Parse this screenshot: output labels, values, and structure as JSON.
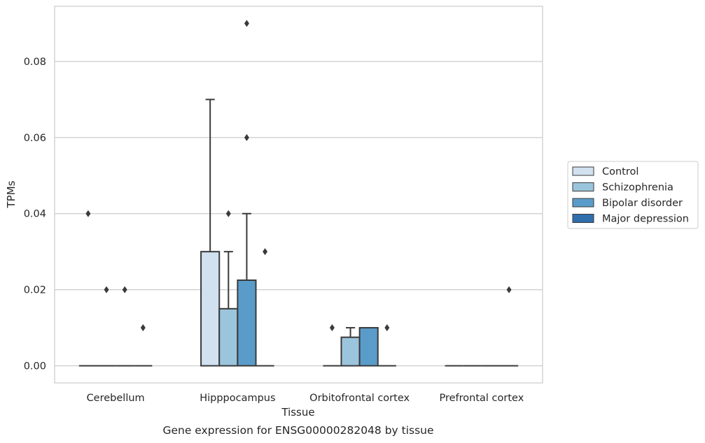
{
  "chart_data": {
    "type": "box",
    "title": "",
    "caption": "Gene expression for ENSG00000282048 by tissue",
    "xlabel": "Tissue",
    "ylabel": "TPMs",
    "ylim": [
      -0.0045,
      0.0945
    ],
    "yticks": [
      0.0,
      0.02,
      0.04,
      0.06,
      0.08
    ],
    "ytick_labels": [
      "0.00",
      "0.02",
      "0.04",
      "0.06",
      "0.08"
    ],
    "grid": "horizontal",
    "legend_position": "right",
    "categories": [
      "Cerebellum",
      "Hipppocampus",
      "Orbitofrontal cortex",
      "Prefrontal cortex"
    ],
    "series": [
      {
        "name": "Control",
        "color": "#d1e1f0",
        "boxes": [
          {
            "q1": 0.0,
            "median": 0.0,
            "q3": 0.0,
            "whisker_low": 0.0,
            "whisker_high": 0.0,
            "outliers": [
              0.04
            ]
          },
          {
            "q1": 0.0,
            "median": 0.0,
            "q3": 0.03,
            "whisker_low": 0.0,
            "whisker_high": 0.07,
            "outliers": []
          },
          {
            "q1": 0.0,
            "median": 0.0,
            "q3": 0.0,
            "whisker_low": 0.0,
            "whisker_high": 0.0,
            "outliers": [
              0.01
            ]
          },
          {
            "q1": 0.0,
            "median": 0.0,
            "q3": 0.0,
            "whisker_low": 0.0,
            "whisker_high": 0.0,
            "outliers": []
          }
        ]
      },
      {
        "name": "Schizophrenia",
        "color": "#9bc5dc",
        "boxes": [
          {
            "q1": 0.0,
            "median": 0.0,
            "q3": 0.0,
            "whisker_low": 0.0,
            "whisker_high": 0.0,
            "outliers": [
              0.02
            ]
          },
          {
            "q1": 0.0,
            "median": 0.0,
            "q3": 0.015,
            "whisker_low": 0.0,
            "whisker_high": 0.03,
            "outliers": [
              0.04
            ]
          },
          {
            "q1": 0.0,
            "median": 0.0,
            "q3": 0.0075,
            "whisker_low": 0.0,
            "whisker_high": 0.01,
            "outliers": []
          },
          {
            "q1": 0.0,
            "median": 0.0,
            "q3": 0.0,
            "whisker_low": 0.0,
            "whisker_high": 0.0,
            "outliers": []
          }
        ]
      },
      {
        "name": "Bipolar disorder",
        "color": "#5a9cc9",
        "boxes": [
          {
            "q1": 0.0,
            "median": 0.0,
            "q3": 0.0,
            "whisker_low": 0.0,
            "whisker_high": 0.0,
            "outliers": [
              0.02
            ]
          },
          {
            "q1": 0.0,
            "median": 0.0,
            "q3": 0.0225,
            "whisker_low": 0.0,
            "whisker_high": 0.04,
            "outliers": [
              0.09,
              0.06
            ]
          },
          {
            "q1": 0.0,
            "median": 0.0,
            "q3": 0.01,
            "whisker_low": 0.0,
            "whisker_high": 0.01,
            "outliers": []
          },
          {
            "q1": 0.0,
            "median": 0.0,
            "q3": 0.0,
            "whisker_low": 0.0,
            "whisker_high": 0.0,
            "outliers": []
          }
        ]
      },
      {
        "name": "Major depression",
        "color": "#2f6fad",
        "boxes": [
          {
            "q1": 0.0,
            "median": 0.0,
            "q3": 0.0,
            "whisker_low": 0.0,
            "whisker_high": 0.0,
            "outliers": [
              0.01
            ]
          },
          {
            "q1": 0.0,
            "median": 0.0,
            "q3": 0.0,
            "whisker_low": 0.0,
            "whisker_high": 0.0,
            "outliers": [
              0.03
            ]
          },
          {
            "q1": 0.0,
            "median": 0.0,
            "q3": 0.0,
            "whisker_low": 0.0,
            "whisker_high": 0.0,
            "outliers": [
              0.01
            ]
          },
          {
            "q1": 0.0,
            "median": 0.0,
            "q3": 0.0,
            "whisker_low": 0.0,
            "whisker_high": 0.0,
            "outliers": [
              0.02
            ]
          }
        ]
      }
    ]
  }
}
